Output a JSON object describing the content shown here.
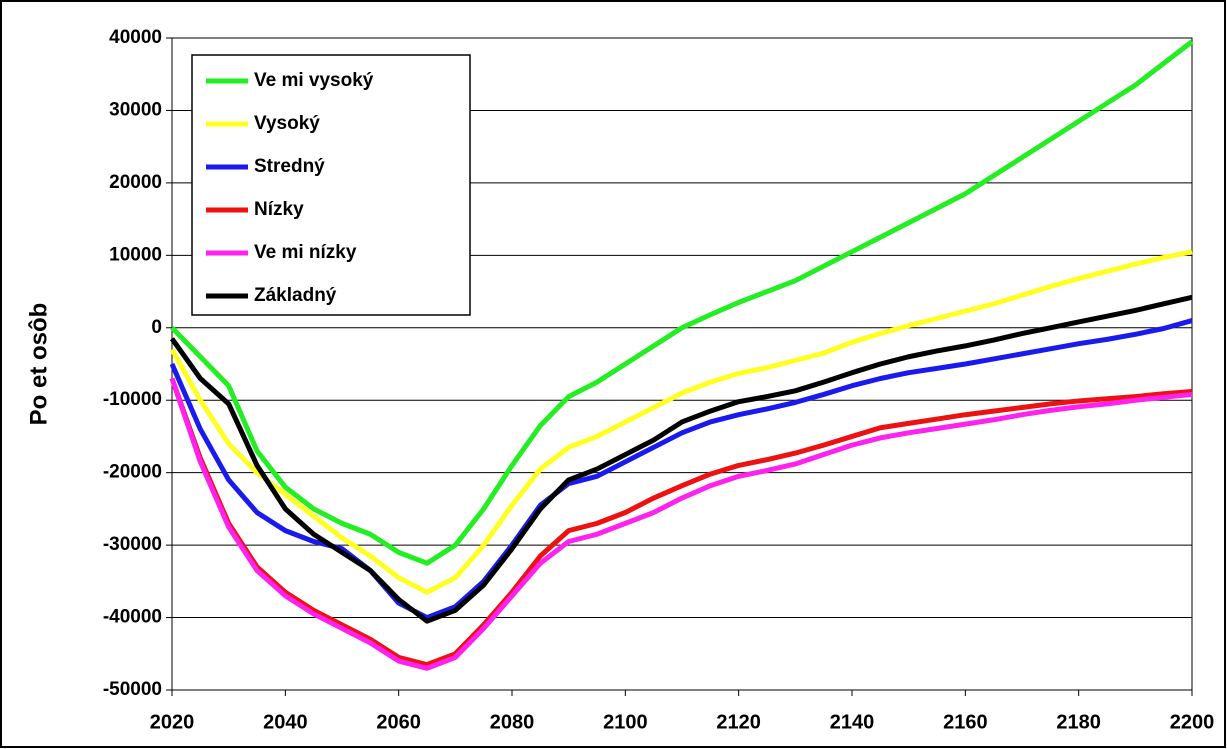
{
  "chart_data": {
    "type": "line",
    "ylabel": "Po et osôb",
    "x": [
      2020,
      2025,
      2030,
      2035,
      2040,
      2045,
      2050,
      2055,
      2060,
      2065,
      2070,
      2075,
      2080,
      2085,
      2090,
      2095,
      2100,
      2105,
      2110,
      2115,
      2120,
      2125,
      2130,
      2135,
      2140,
      2145,
      2150,
      2155,
      2160,
      2165,
      2170,
      2175,
      2180,
      2185,
      2190,
      2195,
      2200
    ],
    "xlim": [
      2020,
      2200
    ],
    "xticks": [
      2020,
      2040,
      2060,
      2080,
      2100,
      2120,
      2140,
      2160,
      2180,
      2200
    ],
    "ylim": [
      -50000,
      40000
    ],
    "yticks": [
      -50000,
      -40000,
      -30000,
      -20000,
      -10000,
      0,
      10000,
      20000,
      30000,
      40000
    ],
    "grid": true,
    "legend": "upper left",
    "series": [
      {
        "name": "Ve mi vysoký",
        "color": "#22ee22",
        "values": [
          0,
          -4000,
          -8000,
          -17000,
          -22000,
          -25000,
          -27000,
          -28500,
          -31000,
          -32500,
          -30000,
          -25000,
          -19000,
          -13500,
          -9500,
          -7500,
          -5000,
          -2500,
          0,
          1800,
          3500,
          5000,
          6500,
          8500,
          10500,
          12500,
          14500,
          16500,
          18500,
          21000,
          23500,
          26000,
          28500,
          31000,
          33500,
          36500,
          39500
        ]
      },
      {
        "name": "Vysoký",
        "color": "#ffff22",
        "values": [
          -3000,
          -10000,
          -16000,
          -20000,
          -23000,
          -26000,
          -29000,
          -31500,
          -34500,
          -36500,
          -34500,
          -30000,
          -24500,
          -19500,
          -16500,
          -15000,
          -13000,
          -11000,
          -9000,
          -7500,
          -6300,
          -5500,
          -4500,
          -3500,
          -2000,
          -800,
          300,
          1300,
          2300,
          3300,
          4500,
          5700,
          6800,
          7800,
          8800,
          9700,
          10500
        ]
      },
      {
        "name": "Stredný",
        "color": "#1a1aee",
        "values": [
          -5000,
          -14000,
          -21000,
          -25500,
          -28000,
          -29500,
          -30500,
          -33500,
          -38000,
          -40000,
          -38500,
          -35000,
          -30000,
          -24500,
          -21500,
          -20500,
          -18500,
          -16500,
          -14500,
          -13000,
          -12000,
          -11200,
          -10300,
          -9200,
          -8000,
          -7000,
          -6200,
          -5600,
          -5000,
          -4300,
          -3600,
          -2900,
          -2200,
          -1600,
          -900,
          -100,
          1000
        ]
      },
      {
        "name": "Nízky",
        "color": "#ee1111",
        "values": [
          -7000,
          -18000,
          -27000,
          -33000,
          -36500,
          -39000,
          -41000,
          -43000,
          -45500,
          -46500,
          -45000,
          -41000,
          -36500,
          -31500,
          -28000,
          -27000,
          -25500,
          -23500,
          -21800,
          -20200,
          -19000,
          -18200,
          -17300,
          -16200,
          -15000,
          -13800,
          -13200,
          -12600,
          -12000,
          -11500,
          -11000,
          -10500,
          -10100,
          -9800,
          -9500,
          -9100,
          -8800
        ]
      },
      {
        "name": "Ve mi nízky",
        "color": "#ff22ee",
        "values": [
          -7000,
          -18500,
          -27500,
          -33500,
          -37000,
          -39500,
          -41500,
          -43500,
          -46000,
          -47000,
          -45500,
          -41500,
          -37000,
          -32500,
          -29500,
          -28500,
          -27000,
          -25500,
          -23500,
          -21800,
          -20500,
          -19700,
          -18800,
          -17500,
          -16200,
          -15200,
          -14500,
          -13900,
          -13300,
          -12700,
          -12000,
          -11400,
          -10900,
          -10500,
          -10000,
          -9600,
          -9200
        ]
      },
      {
        "name": "Základný",
        "color": "#000000",
        "values": [
          -1500,
          -7000,
          -10500,
          -19000,
          -25000,
          -28500,
          -31000,
          -33500,
          -37500,
          -40500,
          -39000,
          -35500,
          -30500,
          -25000,
          -21000,
          -19500,
          -17500,
          -15500,
          -13000,
          -11500,
          -10200,
          -9500,
          -8700,
          -7500,
          -6200,
          -5000,
          -4000,
          -3200,
          -2500,
          -1700,
          -800,
          0,
          800,
          1600,
          2400,
          3300,
          4200
        ]
      }
    ]
  }
}
